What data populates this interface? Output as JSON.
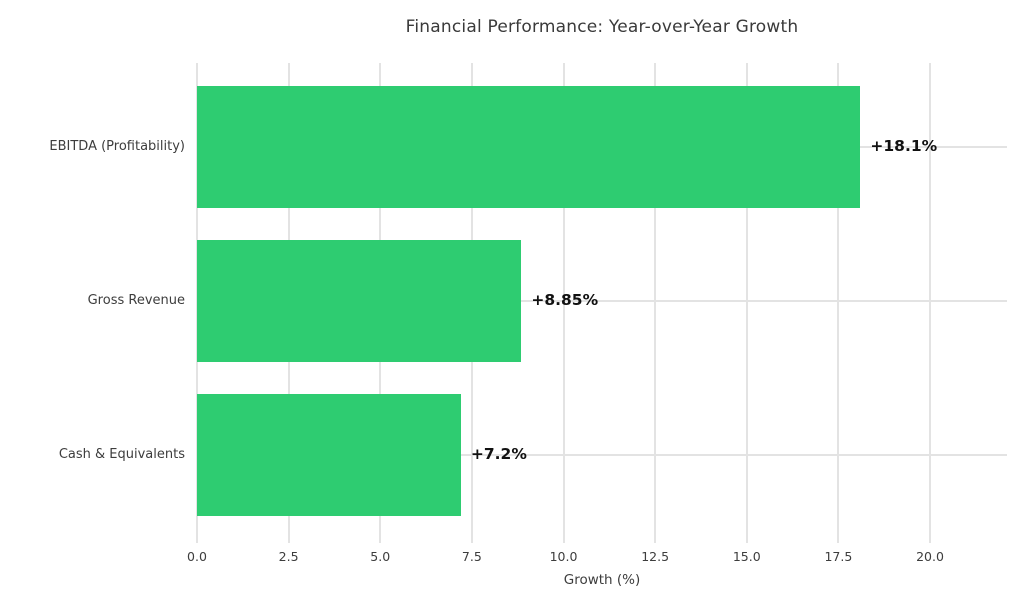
{
  "chart_data": {
    "type": "bar",
    "orientation": "horizontal",
    "title": "Financial Performance: Year-over-Year Growth",
    "categories": [
      "EBITDA (Profitability)",
      "Gross Revenue",
      "Cash & Equivalents"
    ],
    "values": [
      18.1,
      8.85,
      7.2
    ],
    "value_labels": [
      "+18.1%",
      "+8.85%",
      "+7.2%"
    ],
    "xlabel": "Growth (%)",
    "xticks": [
      0.0,
      2.5,
      5.0,
      7.5,
      10.0,
      12.5,
      15.0,
      17.5,
      20.0
    ],
    "xtick_labels": [
      "0.0",
      "2.5",
      "5.0",
      "7.5",
      "10.0",
      "12.5",
      "15.0",
      "17.5",
      "20.0"
    ],
    "xlim": [
      0,
      22.1
    ],
    "grid": true,
    "legend": null,
    "colors": {
      "bar": "#2ecc71",
      "background": "#ffffff",
      "gridline": "#e3e3e3",
      "title_text": "#3a3a3a",
      "tick_text": "#3d3d3d",
      "value_text": "#111111"
    }
  }
}
